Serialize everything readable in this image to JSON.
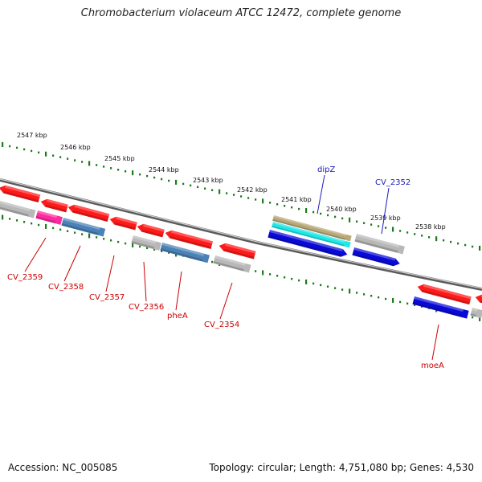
{
  "title": "Chromobacterium violaceum ATCC 12472, complete genome",
  "footer": {
    "accession": "Accession: NC_005085",
    "summary": "Topology: circular; Length: 4,751,080 bp; Genes: 4,530"
  },
  "colors": {
    "tick": "#1e7a1e",
    "forward_label": "#1a1ab8",
    "reverse_label": "#cc0000",
    "red_gene": "#ff1a1a",
    "blue_gene": "#0a0ad8",
    "steel_gene": "#4a82b8",
    "grey_gene": "#b8b8b8",
    "magenta_gene": "#ff2aa0",
    "cyan_gene": "#1ee8e8",
    "olive_gene": "#b8a878"
  },
  "kbp_ticks": [
    "2547 kbp",
    "2546 kbp",
    "2545 kbp",
    "2544 kbp",
    "2543 kbp",
    "2542 kbp",
    "2541 kbp",
    "2540 kbp",
    "2539 kbp",
    "2538 kbp"
  ],
  "gene_labels": {
    "forward": [
      "dipZ",
      "CV_2352"
    ],
    "reverse": [
      "CV_2359",
      "CV_2358",
      "CV_2357",
      "CV_2356",
      "pheA",
      "CV_2354",
      "moeA"
    ]
  }
}
